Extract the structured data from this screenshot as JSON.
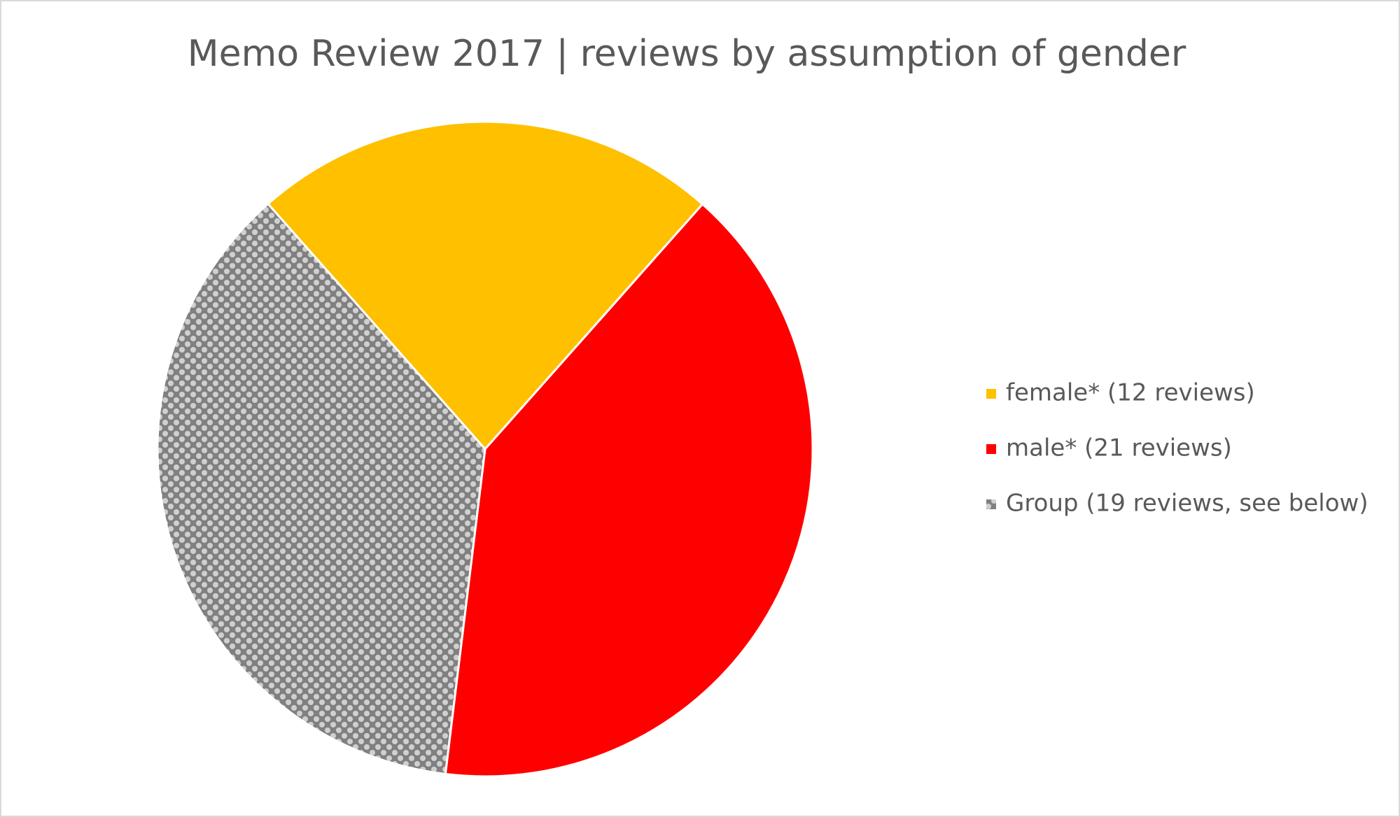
{
  "chart_data": {
    "type": "pie",
    "title": "Memo Review 2017 | reviews by assumption of gender",
    "categories": [
      "female* (12 reviews)",
      "male* (21 reviews)",
      "Group (19 reviews, see below)"
    ],
    "values": [
      12,
      21,
      19
    ],
    "colors": [
      "#FFC000",
      "#FF0000",
      "pattern-gray"
    ],
    "legend": "right"
  }
}
